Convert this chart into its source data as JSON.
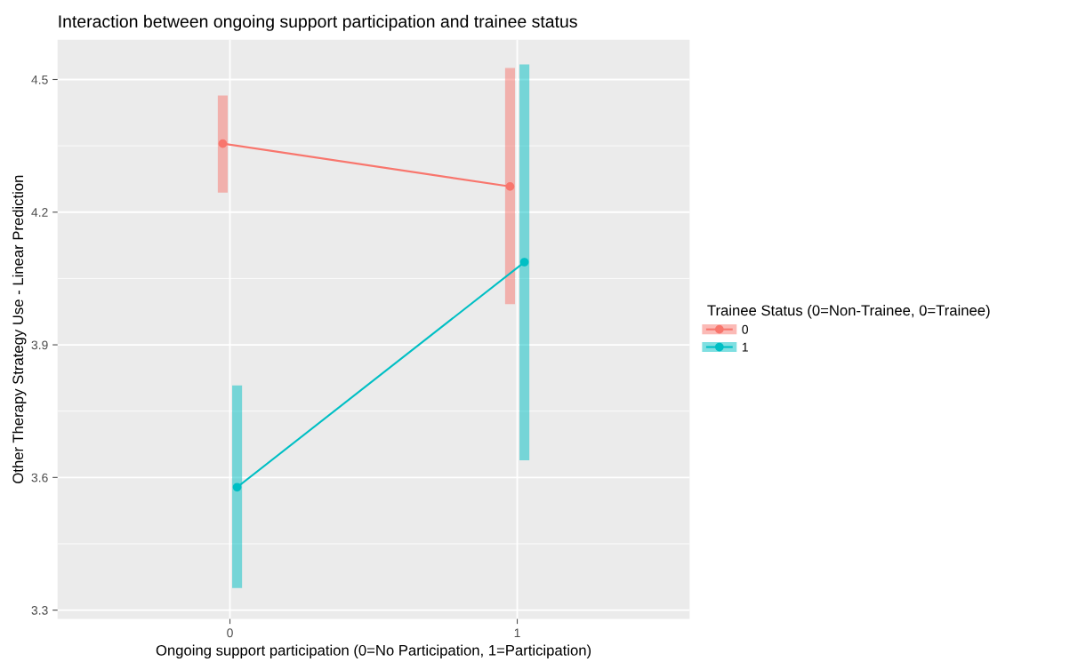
{
  "chart_data": {
    "type": "line",
    "title": "Interaction between ongoing support participation and trainee status",
    "xlabel": "Ongoing support participation (0=No Participation, 1=Participation)",
    "ylabel": "Other Therapy Strategy Use - Linear Prediction",
    "legend_title": "Trainee Status (0=Non-Trainee, 0=Trainee)",
    "categories": [
      "0",
      "1"
    ],
    "series": [
      {
        "name": "0",
        "color": "#f8766d",
        "values": [
          4.355,
          4.258
        ],
        "errors": [
          [
            4.244,
            4.464
          ],
          [
            3.992,
            4.526
          ]
        ]
      },
      {
        "name": "1",
        "color": "#00bfc4",
        "values": [
          3.578,
          4.087
        ],
        "errors": [
          [
            3.35,
            3.808
          ],
          [
            3.639,
            4.534
          ]
        ]
      }
    ],
    "ylim": [
      3.28,
      4.59
    ],
    "yticks": [
      3.3,
      3.6,
      3.9,
      4.2,
      4.5
    ],
    "grid": true,
    "legend": "right",
    "marker": "circle",
    "line_style": "solid"
  }
}
